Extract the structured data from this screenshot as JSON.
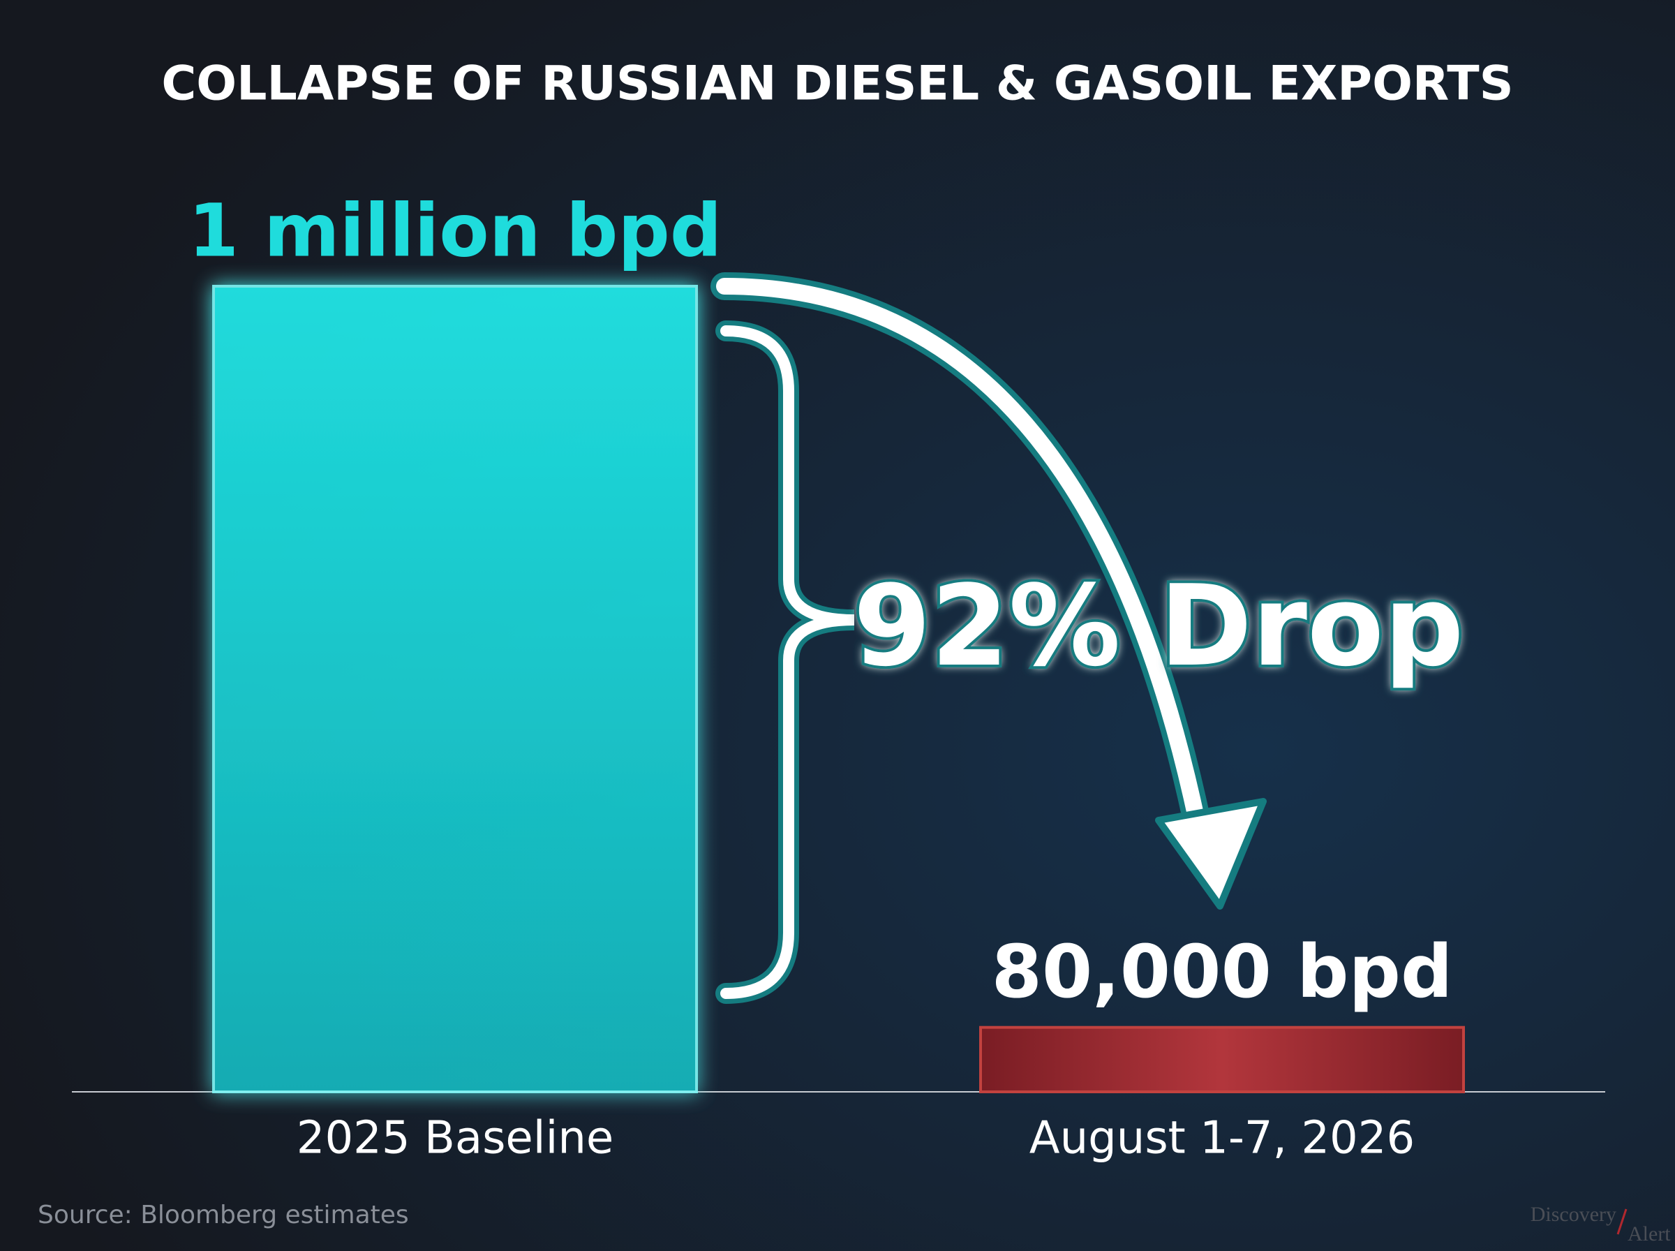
{
  "chart_data": {
    "type": "bar",
    "title": "COLLAPSE OF RUSSIAN DIESEL & GASOIL EXPORTS",
    "categories": [
      "2025 Baseline",
      "August 1-7, 2026"
    ],
    "values": [
      1000000,
      80000
    ],
    "value_labels": [
      "1 million bpd",
      "80,000 bpd"
    ],
    "colors": [
      "#1fdcdc",
      "#9a2a30"
    ],
    "ylim": [
      0,
      1000000
    ],
    "annotation": "92% Drop",
    "source": "Source: Bloomberg estimates",
    "watermark": [
      "Discovery",
      "Alert"
    ]
  }
}
